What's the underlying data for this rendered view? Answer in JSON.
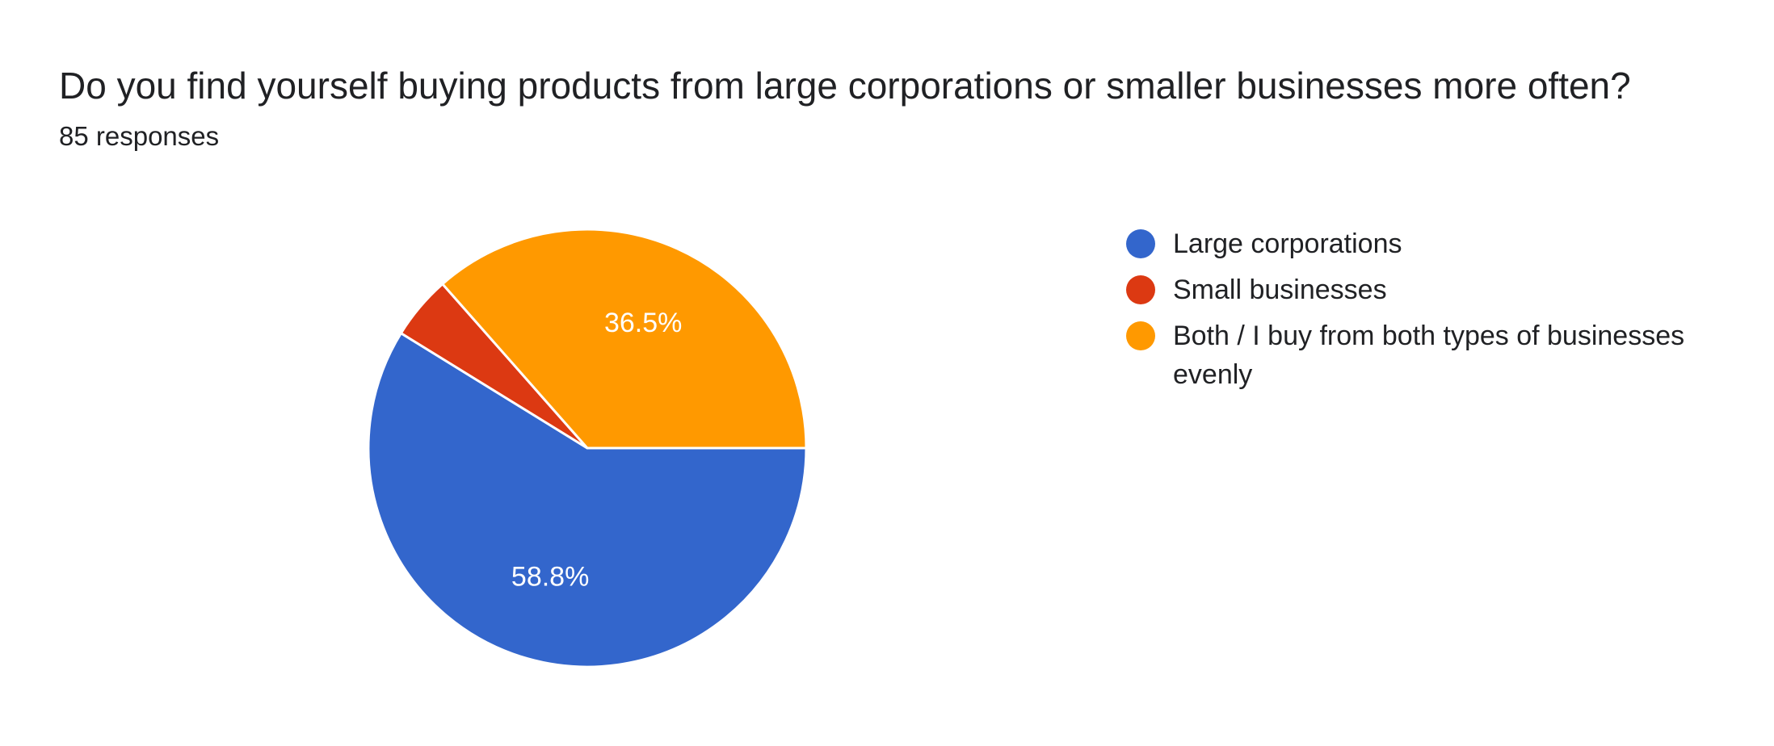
{
  "form_response": {
    "question": "Do you find yourself buying products from large corporations or smaller businesses more often?",
    "responses_text": "85 responses"
  },
  "chart_data": {
    "type": "pie",
    "title": "Do you find yourself buying products from large corporations or smaller businesses more often?",
    "subtitle": "85 responses",
    "total_responses": 85,
    "legend_position": "right",
    "slices": [
      {
        "label": "Large corporations",
        "value": 58.8,
        "display": "58.8%",
        "color": "#3366cc"
      },
      {
        "label": "Small businesses",
        "value": 4.7,
        "display": "",
        "color": "#dc3912"
      },
      {
        "label": "Both / I buy from both types of businesses evenly",
        "value": 36.5,
        "display": "36.5%",
        "color": "#ff9900"
      }
    ]
  }
}
